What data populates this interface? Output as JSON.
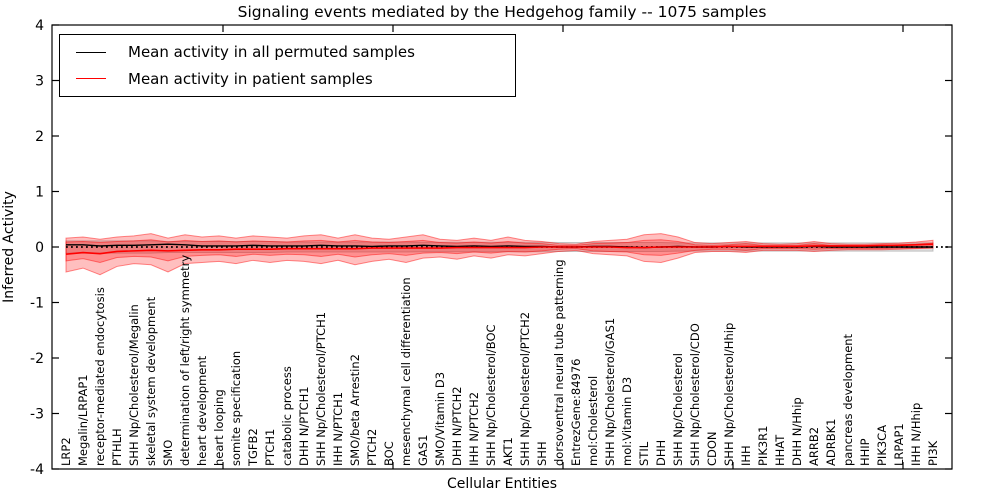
{
  "title": "Signaling events mediated by the Hedgehog family -- 1075 samples",
  "xlabel": "Cellular Entities",
  "ylabel": "Inferred Activity",
  "legend": [
    {
      "label": "Mean activity in all permuted samples",
      "color": "#000000"
    },
    {
      "label": "Mean activity in patient samples",
      "color": "#ff0000"
    }
  ],
  "colors": {
    "permuted_line": "#000000",
    "patient_line": "#ff0000",
    "patient_band": "#ff0000",
    "permuted_band": "#999999",
    "background": "#ffffff"
  },
  "chart_data": {
    "type": "line",
    "title": "Signaling events mediated by the Hedgehog family -- 1075 samples",
    "xlabel": "Cellular Entities",
    "ylabel": "Inferred Activity",
    "ylim": [
      -4,
      4
    ],
    "yticks": [
      4,
      3,
      2,
      1,
      0,
      -1,
      -2,
      -3,
      -4
    ],
    "grid": false,
    "legend_position": "upper left",
    "zero_line": 0,
    "categories": [
      "LRP2",
      "Megalin/LRPAP1",
      "receptor-mediated endocytosis",
      "PTHLH",
      "SHH Np/Cholesterol/Megalin",
      "skeletal system development",
      "SMO",
      "determination of left/right symmetry",
      "heart development",
      "heart looping",
      "somite specification",
      "TGFB2",
      "PTCH1",
      "catabolic process",
      "DHH N/PTCH1",
      "SHH Np/Cholesterol/PTCH1",
      "IHH N/PTCH1",
      "SMO/beta Arrestin2",
      "PTCH2",
      "BOC",
      "mesenchymal cell differentiation",
      "GAS1",
      "SMO/Vitamin D3",
      "DHH N/PTCH2",
      "IHH N/PTCH2",
      "SHH Np/Cholesterol/BOC",
      "AKT1",
      "SHH Np/Cholesterol/PTCH2",
      "SHH",
      "dorsoventral neural tube patterning",
      "EntrezGene:84976",
      "mol:Cholesterol",
      "SHH Np/Cholesterol/GAS1",
      "mol:Vitamin D3",
      "STIL",
      "DHH",
      "SHH Np/Cholesterol",
      "SHH Np/Cholesterol/CDO",
      "CDON",
      "SHH Np/Cholesterol/Hhip",
      "IHH",
      "PIK3R1",
      "HHAT",
      "DHH N/Hhip",
      "ARRB2",
      "ADRBK1",
      "pancreas development",
      "HHIP",
      "PIK3CA",
      "LRPAP1",
      "IHH N/Hhip",
      "PI3K"
    ],
    "series": [
      {
        "name": "Mean activity in all permuted samples",
        "color": "#000000",
        "values": [
          0.04,
          0.04,
          0.02,
          0.03,
          0.03,
          0.04,
          0.05,
          0.04,
          0.02,
          0.02,
          0.02,
          0.03,
          0.02,
          0.02,
          0.02,
          0.03,
          0.02,
          0.02,
          0.01,
          0.02,
          0.02,
          0.03,
          0.02,
          0.01,
          0.02,
          0.01,
          0.02,
          0.01,
          0.01,
          0.0,
          0.0,
          0.01,
          0.01,
          0.0,
          -0.01,
          0.0,
          0.01,
          0.0,
          0.0,
          0.01,
          0.0,
          0.0,
          0.0,
          0.0,
          0.01,
          0.0,
          0.0,
          0.0,
          0.0,
          0.0,
          0.0,
          0.0
        ]
      },
      {
        "name": "Mean activity in patient samples",
        "color": "#ff0000",
        "values": [
          -0.13,
          -0.1,
          -0.12,
          -0.08,
          -0.07,
          -0.06,
          -0.07,
          -0.06,
          -0.05,
          -0.05,
          -0.04,
          -0.04,
          -0.04,
          -0.03,
          -0.03,
          -0.03,
          -0.03,
          -0.03,
          -0.02,
          -0.02,
          -0.02,
          -0.02,
          -0.02,
          -0.01,
          -0.01,
          -0.01,
          -0.01,
          -0.01,
          0.0,
          0.0,
          0.0,
          0.0,
          0.0,
          -0.01,
          -0.01,
          0.0,
          0.0,
          0.0,
          0.0,
          0.01,
          0.01,
          0.01,
          0.01,
          0.01,
          0.02,
          0.02,
          0.02,
          0.02,
          0.03,
          0.03,
          0.04,
          0.05
        ]
      }
    ],
    "bands": [
      {
        "name": "permuted-samples-spread",
        "color": "#999999",
        "opacity": 0.3,
        "upper": [
          0.11,
          0.11,
          0.11,
          0.11,
          0.11,
          0.11,
          0.1,
          0.1,
          0.1,
          0.1,
          0.1,
          0.1,
          0.1,
          0.09,
          0.09,
          0.09,
          0.09,
          0.09,
          0.09,
          0.09,
          0.09,
          0.085,
          0.085,
          0.085,
          0.085,
          0.085,
          0.085,
          0.085,
          0.085,
          0.08,
          0.08,
          0.08,
          0.08,
          0.08,
          0.08,
          0.08,
          0.075,
          0.075,
          0.075,
          0.075,
          0.075,
          0.075,
          0.075,
          0.075,
          0.075,
          0.075,
          0.075,
          0.075,
          0.075,
          0.075,
          0.075,
          0.075
        ],
        "lower": [
          -0.11,
          -0.11,
          -0.11,
          -0.11,
          -0.11,
          -0.11,
          -0.1,
          -0.1,
          -0.1,
          -0.1,
          -0.1,
          -0.1,
          -0.1,
          -0.09,
          -0.09,
          -0.09,
          -0.09,
          -0.09,
          -0.09,
          -0.09,
          -0.09,
          -0.085,
          -0.085,
          -0.085,
          -0.085,
          -0.085,
          -0.085,
          -0.085,
          -0.085,
          -0.08,
          -0.08,
          -0.08,
          -0.08,
          -0.08,
          -0.08,
          -0.08,
          -0.075,
          -0.075,
          -0.075,
          -0.075,
          -0.075,
          -0.075,
          -0.075,
          -0.075,
          -0.075,
          -0.075,
          -0.075,
          -0.075,
          -0.075,
          -0.075,
          -0.075,
          -0.075
        ]
      },
      {
        "name": "patient-samples-spread-outer",
        "color": "#ff0000",
        "opacity": 0.25,
        "upper": [
          0.16,
          0.18,
          0.14,
          0.18,
          0.2,
          0.24,
          0.16,
          0.22,
          0.18,
          0.2,
          0.16,
          0.2,
          0.18,
          0.16,
          0.2,
          0.22,
          0.16,
          0.22,
          0.16,
          0.14,
          0.18,
          0.22,
          0.14,
          0.12,
          0.16,
          0.12,
          0.18,
          0.12,
          0.1,
          0.06,
          0.05,
          0.1,
          0.12,
          0.14,
          0.22,
          0.24,
          0.18,
          0.08,
          0.06,
          0.08,
          0.1,
          0.06,
          0.05,
          0.06,
          0.1,
          0.06,
          0.05,
          0.05,
          0.06,
          0.07,
          0.09,
          0.12
        ],
        "lower": [
          -0.45,
          -0.38,
          -0.5,
          -0.35,
          -0.3,
          -0.32,
          -0.45,
          -0.3,
          -0.28,
          -0.26,
          -0.3,
          -0.24,
          -0.28,
          -0.24,
          -0.26,
          -0.3,
          -0.24,
          -0.32,
          -0.26,
          -0.22,
          -0.28,
          -0.2,
          -0.18,
          -0.22,
          -0.16,
          -0.2,
          -0.14,
          -0.16,
          -0.12,
          -0.08,
          -0.06,
          -0.12,
          -0.14,
          -0.16,
          -0.26,
          -0.28,
          -0.2,
          -0.1,
          -0.08,
          -0.08,
          -0.1,
          -0.06,
          -0.06,
          -0.06,
          -0.08,
          -0.06,
          -0.05,
          -0.05,
          -0.05,
          -0.04,
          -0.03,
          -0.02
        ]
      },
      {
        "name": "patient-samples-spread-inner",
        "color": "#ff0000",
        "opacity": 0.25,
        "upper": [
          0.09,
          0.1,
          0.08,
          0.1,
          0.11,
          0.13,
          0.09,
          0.12,
          0.1,
          0.11,
          0.09,
          0.11,
          0.1,
          0.09,
          0.11,
          0.12,
          0.09,
          0.12,
          0.09,
          0.08,
          0.1,
          0.12,
          0.08,
          0.07,
          0.09,
          0.07,
          0.1,
          0.07,
          0.06,
          0.03,
          0.03,
          0.06,
          0.07,
          0.08,
          0.12,
          0.13,
          0.1,
          0.04,
          0.03,
          0.04,
          0.06,
          0.03,
          0.03,
          0.03,
          0.06,
          0.03,
          0.03,
          0.03,
          0.03,
          0.04,
          0.05,
          0.07
        ],
        "lower": [
          -0.25,
          -0.21,
          -0.28,
          -0.19,
          -0.17,
          -0.18,
          -0.25,
          -0.17,
          -0.15,
          -0.14,
          -0.17,
          -0.13,
          -0.15,
          -0.13,
          -0.14,
          -0.17,
          -0.13,
          -0.18,
          -0.14,
          -0.12,
          -0.15,
          -0.11,
          -0.1,
          -0.12,
          -0.09,
          -0.11,
          -0.08,
          -0.09,
          -0.07,
          -0.04,
          -0.03,
          -0.07,
          -0.08,
          -0.09,
          -0.14,
          -0.15,
          -0.11,
          -0.06,
          -0.04,
          -0.04,
          -0.06,
          -0.03,
          -0.03,
          -0.03,
          -0.04,
          -0.03,
          -0.03,
          -0.03,
          -0.03,
          -0.02,
          -0.02,
          -0.01
        ]
      }
    ]
  }
}
